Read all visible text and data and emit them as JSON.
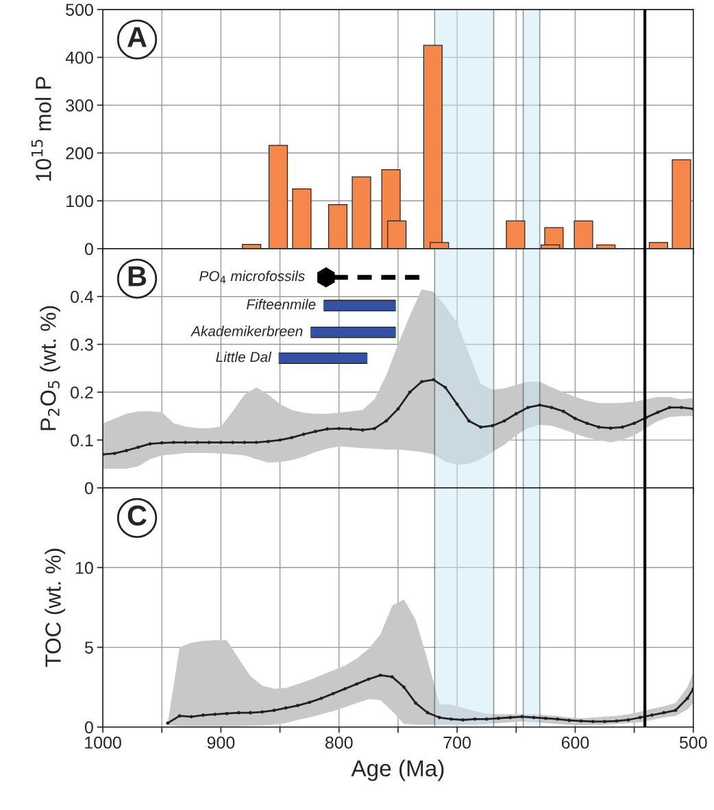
{
  "chart_data": [
    {
      "type": "bar",
      "ylabel": "10$^{15}$ mol P",
      "annotations": [
        "A"
      ],
      "xlim": [
        1000,
        500
      ],
      "xticks": [
        {
          "value": 1000,
          "label": null
        },
        {
          "value": 950,
          "label": null
        },
        {
          "value": 900,
          "label": null
        },
        {
          "value": 850,
          "label": null
        },
        {
          "value": 800,
          "label": null
        },
        {
          "value": 750,
          "label": null
        },
        {
          "value": 700,
          "label": null
        },
        {
          "value": 650,
          "label": null
        },
        {
          "value": 600,
          "label": null
        },
        {
          "value": 550,
          "label": null
        },
        {
          "value": 500,
          "label": null
        }
      ],
      "ylim": [
        0,
        500
      ],
      "yticks": [
        0,
        100,
        200,
        300,
        400,
        500
      ],
      "grid": true,
      "tick_labels": "y",
      "color": "#f5874b",
      "x": [
        874,
        851.5,
        831.5,
        801,
        781,
        756,
        751,
        720.5,
        715,
        650.5,
        621,
        618,
        593,
        574,
        529.5,
        510
      ],
      "values": [
        9,
        216,
        125,
        92,
        150,
        165,
        58,
        425,
        13,
        58,
        8,
        44,
        58,
        8,
        13,
        186
      ],
      "bands": [
        {
          "axis": "x",
          "from": 719,
          "to": 669,
          "color": "#cce9f8"
        },
        {
          "axis": "x",
          "from": 644,
          "to": 630,
          "color": "#cce9f8"
        }
      ],
      "ref_lines": [
        {
          "axis": "x",
          "value": 541,
          "color": "#000000"
        }
      ]
    },
    {
      "type": "line",
      "ylabel": "P$_{2}$O$_{5}$ (wt. %)",
      "annotations": [
        "B"
      ],
      "xlim": [
        1000,
        500
      ],
      "xticks": [
        {
          "value": 1000,
          "label": null
        },
        {
          "value": 950,
          "label": null
        },
        {
          "value": 900,
          "label": null
        },
        {
          "value": 850,
          "label": null
        },
        {
          "value": 800,
          "label": null
        },
        {
          "value": 750,
          "label": null
        },
        {
          "value": 700,
          "label": null
        },
        {
          "value": 650,
          "label": null
        },
        {
          "value": 600,
          "label": null
        },
        {
          "value": 550,
          "label": null
        },
        {
          "value": 500,
          "label": null
        }
      ],
      "ylim": [
        0,
        0.5
      ],
      "yticks": [
        0,
        0.1,
        0.2,
        0.3,
        0.4
      ],
      "grid": true,
      "tick_labels": "y",
      "bands": [
        {
          "axis": "x",
          "from": 719,
          "to": 669,
          "color": "#cce9f8"
        },
        {
          "axis": "x",
          "from": 644,
          "to": 630,
          "color": "#cce9f8"
        }
      ],
      "ref_lines": [
        {
          "axis": "x",
          "value": 541,
          "color": "#000000"
        }
      ],
      "series": [
        {
          "type": "line",
          "color": "#231f20",
          "marker": "circle",
          "line_style": "solid",
          "x": [
            1000,
            990,
            980,
            970,
            960,
            950,
            940,
            930,
            920,
            910,
            900,
            890,
            880,
            870,
            860,
            850,
            840,
            830,
            820,
            810,
            800,
            790,
            780,
            770,
            760,
            750,
            740,
            730,
            720,
            710,
            700,
            690,
            680,
            670,
            660,
            650,
            640,
            630,
            620,
            610,
            600,
            590,
            580,
            570,
            560,
            550,
            540,
            530,
            520,
            510,
            500
          ],
          "values": [
            0.07,
            0.072,
            0.078,
            0.085,
            0.092,
            0.094,
            0.095,
            0.095,
            0.095,
            0.095,
            0.095,
            0.095,
            0.095,
            0.095,
            0.097,
            0.1,
            0.105,
            0.112,
            0.118,
            0.123,
            0.124,
            0.123,
            0.121,
            0.124,
            0.14,
            0.165,
            0.2,
            0.222,
            0.226,
            0.21,
            0.175,
            0.14,
            0.127,
            0.13,
            0.14,
            0.155,
            0.168,
            0.173,
            0.168,
            0.16,
            0.145,
            0.135,
            0.127,
            0.125,
            0.127,
            0.135,
            0.147,
            0.158,
            0.168,
            0.168,
            0.165
          ],
          "upper": [
            0.135,
            0.145,
            0.155,
            0.16,
            0.16,
            0.158,
            0.135,
            0.128,
            0.125,
            0.125,
            0.128,
            0.16,
            0.195,
            0.21,
            0.195,
            0.175,
            0.163,
            0.157,
            0.155,
            0.155,
            0.157,
            0.16,
            0.163,
            0.185,
            0.235,
            0.3,
            0.36,
            0.415,
            0.41,
            0.38,
            0.345,
            0.28,
            0.218,
            0.205,
            0.208,
            0.215,
            0.222,
            0.222,
            0.21,
            0.2,
            0.19,
            0.182,
            0.177,
            0.177,
            0.178,
            0.18,
            0.185,
            0.19,
            0.19,
            0.185,
            0.188
          ],
          "lower": [
            0.04,
            0.04,
            0.04,
            0.045,
            0.06,
            0.068,
            0.07,
            0.073,
            0.073,
            0.073,
            0.072,
            0.07,
            0.068,
            0.06,
            0.053,
            0.054,
            0.058,
            0.065,
            0.075,
            0.082,
            0.087,
            0.085,
            0.083,
            0.082,
            0.08,
            0.08,
            0.078,
            0.075,
            0.07,
            0.055,
            0.048,
            0.05,
            0.06,
            0.075,
            0.09,
            0.11,
            0.125,
            0.132,
            0.13,
            0.122,
            0.113,
            0.105,
            0.1,
            0.095,
            0.1,
            0.11,
            0.125,
            0.14,
            0.148,
            0.15,
            0.15
          ]
        },
        {
          "type": "line",
          "name": "PO$_{4}$ microfossils",
          "color": "#000000",
          "line_style": "dashed",
          "x": [
            811,
            732
          ],
          "values": [
            0.44,
            0.44
          ]
        },
        {
          "type": "line",
          "name": "Fifteenmile",
          "color": "#3451a4",
          "line_style": "solid",
          "x": [
            813,
            752
          ],
          "values": [
            0.381,
            0.381
          ]
        },
        {
          "type": "line",
          "name": "Akademikerbreen",
          "color": "#3451a4",
          "line_style": "solid",
          "x": [
            824,
            752
          ],
          "values": [
            0.325,
            0.325
          ]
        },
        {
          "type": "line",
          "name": "Little Dal",
          "color": "#3451a4",
          "line_style": "solid",
          "x": [
            851,
            776
          ],
          "values": [
            0.271,
            0.271
          ]
        }
      ]
    },
    {
      "type": "line",
      "ylabel": "TOC (wt. %)",
      "xlabel": "Age (Ma)",
      "annotations": [
        "C"
      ],
      "xlim": [
        1000,
        500
      ],
      "xticks": [
        1000,
        {
          "value": 950,
          "label": null
        },
        900,
        {
          "value": 850,
          "label": null
        },
        800,
        {
          "value": 750,
          "label": null
        },
        700,
        {
          "value": 650,
          "label": null
        },
        600,
        {
          "value": 550,
          "label": null
        },
        500
      ],
      "ylim": [
        0,
        15
      ],
      "yticks": [
        0,
        5,
        10
      ],
      "grid": true,
      "bands": [
        {
          "axis": "x",
          "from": 719,
          "to": 669,
          "color": "#cce9f8"
        },
        {
          "axis": "x",
          "from": 644,
          "to": 630,
          "color": "#cce9f8"
        }
      ],
      "ref_lines": [
        {
          "axis": "x",
          "value": 541,
          "color": "#000000"
        }
      ],
      "series": [
        {
          "type": "line",
          "color": "#231f20",
          "marker": "circle",
          "line_style": "solid",
          "x": [
            945,
            935,
            925,
            915,
            905,
            895,
            885,
            875,
            865,
            855,
            845,
            835,
            825,
            815,
            805,
            795,
            785,
            775,
            765,
            755,
            745,
            735,
            725,
            715,
            705,
            695,
            685,
            675,
            665,
            655,
            645,
            635,
            625,
            615,
            605,
            595,
            585,
            575,
            565,
            555,
            545,
            535,
            525,
            515,
            505,
            500
          ],
          "values": [
            0.25,
            0.7,
            0.65,
            0.75,
            0.8,
            0.85,
            0.9,
            0.9,
            0.95,
            1.05,
            1.2,
            1.35,
            1.55,
            1.8,
            2.1,
            2.4,
            2.7,
            3.0,
            3.25,
            3.15,
            2.5,
            1.5,
            0.9,
            0.6,
            0.5,
            0.45,
            0.5,
            0.5,
            0.55,
            0.6,
            0.65,
            0.6,
            0.55,
            0.5,
            0.42,
            0.38,
            0.35,
            0.35,
            0.38,
            0.45,
            0.6,
            0.75,
            0.9,
            1.05,
            1.8,
            2.4
          ],
          "upper": [
            0.25,
            5.0,
            5.3,
            5.4,
            5.45,
            5.45,
            4.3,
            3.2,
            2.6,
            2.4,
            2.45,
            2.7,
            2.95,
            3.25,
            3.55,
            3.85,
            4.3,
            4.9,
            5.8,
            7.6,
            8.0,
            6.7,
            4.2,
            1.45,
            1.4,
            1.2,
            1.0,
            0.85,
            0.8,
            0.8,
            0.8,
            0.8,
            0.75,
            0.7,
            0.6,
            0.55,
            0.6,
            0.65,
            0.7,
            0.8,
            0.95,
            1.15,
            1.3,
            1.5,
            2.5,
            3.4
          ],
          "lower": [
            0.1,
            0.05,
            0.05,
            0.05,
            0.05,
            0.05,
            0.05,
            0.08,
            0.1,
            0.15,
            0.25,
            0.45,
            0.6,
            0.8,
            1.0,
            1.25,
            1.5,
            1.75,
            1.7,
            1.0,
            0.2,
            0.15,
            0.15,
            0.15,
            0.15,
            0.15,
            0.15,
            0.2,
            0.25,
            0.3,
            0.35,
            0.3,
            0.25,
            0.2,
            0.15,
            0.12,
            0.12,
            0.15,
            0.2,
            0.25,
            0.3,
            0.45,
            0.6,
            0.7,
            1.1,
            1.5
          ]
        }
      ]
    }
  ]
}
